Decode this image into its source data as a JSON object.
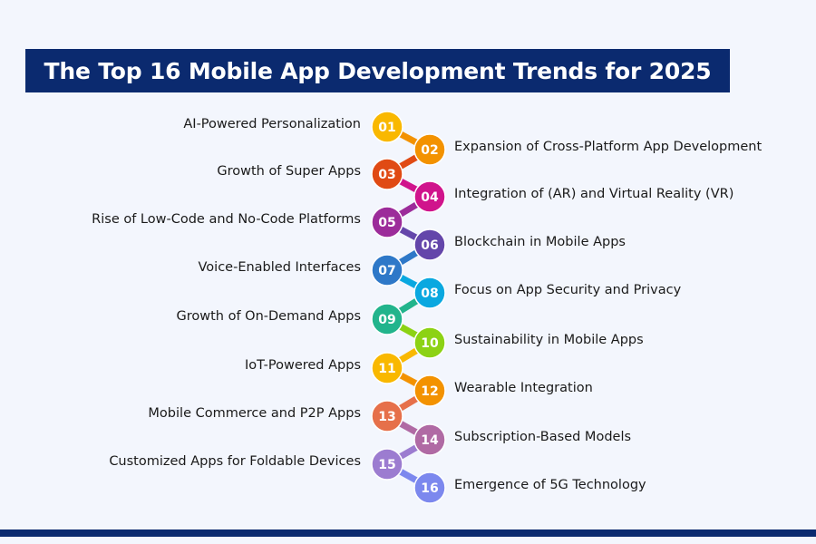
{
  "title": "The Top 16 Mobile App Development Trends for 2025",
  "trends": [
    {
      "number": "01",
      "label": "AI-Powered Personalization",
      "color": "#f9b800"
    },
    {
      "number": "02",
      "label": "Expansion of Cross-Platform App Development",
      "color": "#f39200"
    },
    {
      "number": "03",
      "label": "Growth of Super Apps",
      "color": "#e04a14"
    },
    {
      "number": "04",
      "label": "Integration of (AR) and Virtual Reality (VR)",
      "color": "#d0148c"
    },
    {
      "number": "05",
      "label": "Rise of Low-Code and No-Code Platforms",
      "color": "#9c2c9a"
    },
    {
      "number": "06",
      "label": "Blockchain in Mobile Apps",
      "color": "#6446aa"
    },
    {
      "number": "07",
      "label": "Voice-Enabled Interfaces",
      "color": "#2e78c8"
    },
    {
      "number": "08",
      "label": "Focus on App Security and Privacy",
      "color": "#0aa8e0"
    },
    {
      "number": "09",
      "label": "Growth of On-Demand Apps",
      "color": "#22b48c"
    },
    {
      "number": "10",
      "label": "Sustainability in Mobile Apps",
      "color": "#8cd214"
    },
    {
      "number": "11",
      "label": "IoT-Powered Apps",
      "color": "#f9b800"
    },
    {
      "number": "12",
      "label": "Wearable Integration",
      "color": "#f39200"
    },
    {
      "number": "13",
      "label": "Mobile Commerce and P2P Apps",
      "color": "#e6704a"
    },
    {
      "number": "14",
      "label": "Subscription-Based Models",
      "color": "#b06aa4"
    },
    {
      "number": "15",
      "label": "Customized Apps for Foldable Devices",
      "color": "#9c7cd0"
    },
    {
      "number": "16",
      "label": "Emergence of 5G Technology",
      "color": "#7c88ee"
    }
  ]
}
